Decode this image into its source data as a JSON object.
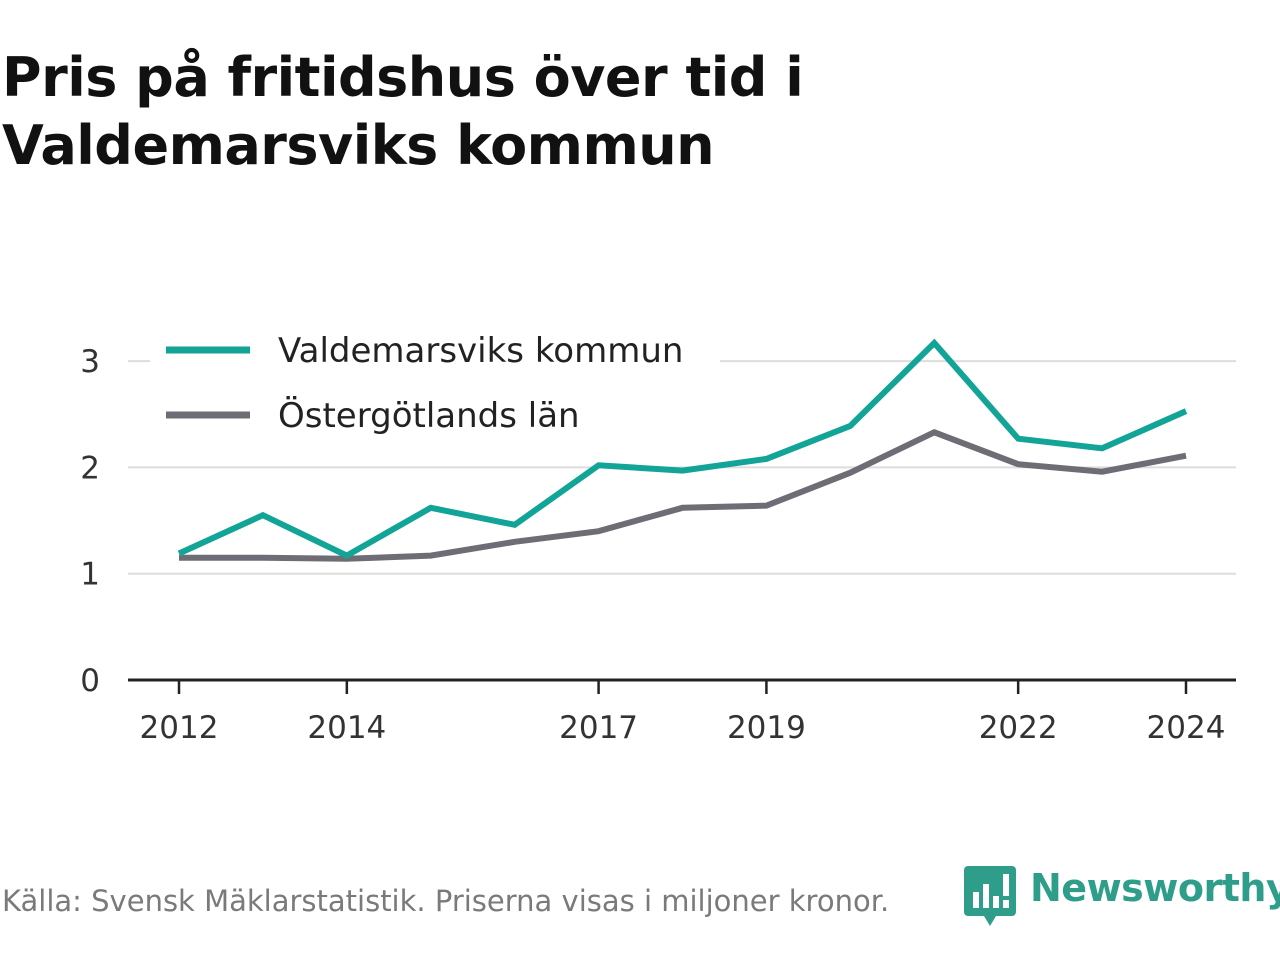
{
  "title": "Pris på fritidshus över tid i Valdemarsviks kommun",
  "footer": {
    "source": "Källa: Svensk Mäklarstatistik. Priserna visas i miljoner kronor."
  },
  "brand": {
    "name": "Newsworthy",
    "icon": "newsworthy-logo-icon",
    "color": "#2e9e8a"
  },
  "chart_data": {
    "type": "line",
    "x": [
      2012,
      2013,
      2014,
      2015,
      2016,
      2017,
      2018,
      2019,
      2020,
      2021,
      2022,
      2023,
      2024
    ],
    "x_ticks": [
      "2012",
      "2014",
      "2017",
      "2019",
      "2022",
      "2024"
    ],
    "y_ticks": [
      "0",
      "1",
      "2",
      "3"
    ],
    "ylim": [
      0,
      3.35
    ],
    "grid": true,
    "legend_position": "top-left",
    "series": [
      {
        "name": "Valdemarsviks kommun",
        "color": "#12a497",
        "values": [
          1.19,
          1.55,
          1.17,
          1.62,
          1.46,
          2.02,
          1.97,
          2.08,
          2.39,
          3.17,
          2.27,
          2.18,
          2.53
        ]
      },
      {
        "name": "Östergötlands län",
        "color": "#6e6d75",
        "values": [
          1.15,
          1.15,
          1.14,
          1.17,
          1.3,
          1.4,
          1.62,
          1.64,
          1.95,
          2.33,
          2.03,
          1.96,
          2.11
        ]
      }
    ]
  }
}
